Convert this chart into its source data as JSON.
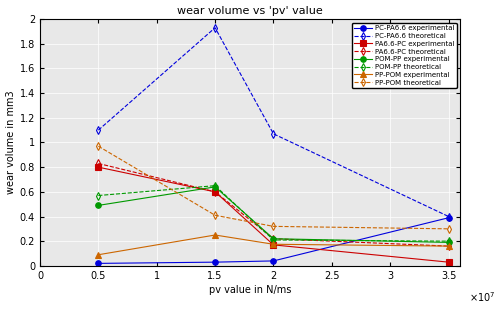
{
  "title": "wear volume vs 'pv' value",
  "xlabel": "pv value in N/ms",
  "ylabel": "wear volume in mm3",
  "xlim": [
    0,
    36000000.0
  ],
  "ylim": [
    0,
    2.0
  ],
  "xtick_vals": [
    0,
    5000000.0,
    10000000.0,
    15000000.0,
    20000000.0,
    25000000.0,
    30000000.0,
    35000000.0
  ],
  "xtick_labels": [
    "0",
    "0.5",
    "1",
    "1.5",
    "2",
    "2.5",
    "3",
    "3.5"
  ],
  "ytick_vals": [
    0,
    0.2,
    0.4,
    0.6,
    0.8,
    1.0,
    1.2,
    1.4,
    1.6,
    1.8,
    2.0
  ],
  "ytick_labels": [
    "0",
    "0.2",
    "0.4",
    "0.6",
    "0.8",
    "1",
    "1.2",
    "1.4",
    "1.6",
    "1.8",
    "2"
  ],
  "bg_color": "#e8e8e8",
  "series": [
    {
      "label": "PC-PA6.6 experimental",
      "color": "#0000dd",
      "linestyle": "-",
      "marker": "o",
      "dashed": false,
      "x": [
        5000000.0,
        15000000.0,
        20000000.0,
        35000000.0
      ],
      "y": [
        0.02,
        0.03,
        0.04,
        0.39
      ]
    },
    {
      "label": "PC-PA6.6 theoretical",
      "color": "#0000dd",
      "linestyle": "--",
      "marker": "d",
      "dashed": true,
      "x": [
        5000000.0,
        15000000.0,
        20000000.0,
        35000000.0
      ],
      "y": [
        1.1,
        1.93,
        1.07,
        0.4
      ]
    },
    {
      "label": "PA6.6-PC experimental",
      "color": "#cc0000",
      "linestyle": "-",
      "marker": "s",
      "dashed": false,
      "x": [
        5000000.0,
        15000000.0,
        20000000.0,
        35000000.0
      ],
      "y": [
        0.8,
        0.6,
        0.17,
        0.03
      ]
    },
    {
      "label": "PA6.6-PC theoretical",
      "color": "#cc0000",
      "linestyle": "--",
      "marker": "d",
      "dashed": true,
      "x": [
        5000000.0,
        15000000.0,
        20000000.0,
        35000000.0
      ],
      "y": [
        0.83,
        0.6,
        0.22,
        0.16
      ]
    },
    {
      "label": "POM-PP experimental",
      "color": "#009900",
      "linestyle": "-",
      "marker": "o",
      "dashed": false,
      "x": [
        5000000.0,
        15000000.0,
        20000000.0,
        35000000.0
      ],
      "y": [
        0.49,
        0.64,
        0.22,
        0.19
      ]
    },
    {
      "label": "POM-PP theoretical",
      "color": "#009900",
      "linestyle": "--",
      "marker": "d",
      "dashed": true,
      "x": [
        5000000.0,
        15000000.0,
        20000000.0,
        35000000.0
      ],
      "y": [
        0.57,
        0.65,
        0.21,
        0.2
      ]
    },
    {
      "label": "PP-POM experimental",
      "color": "#cc6600",
      "linestyle": "-",
      "marker": "^",
      "dashed": false,
      "x": [
        5000000.0,
        15000000.0,
        20000000.0,
        35000000.0
      ],
      "y": [
        0.09,
        0.25,
        0.175,
        0.16
      ]
    },
    {
      "label": "PP-POM theoretical",
      "color": "#cc6600",
      "linestyle": "--",
      "marker": "d",
      "dashed": true,
      "x": [
        5000000.0,
        15000000.0,
        20000000.0,
        35000000.0
      ],
      "y": [
        0.97,
        0.41,
        0.32,
        0.3
      ]
    }
  ]
}
